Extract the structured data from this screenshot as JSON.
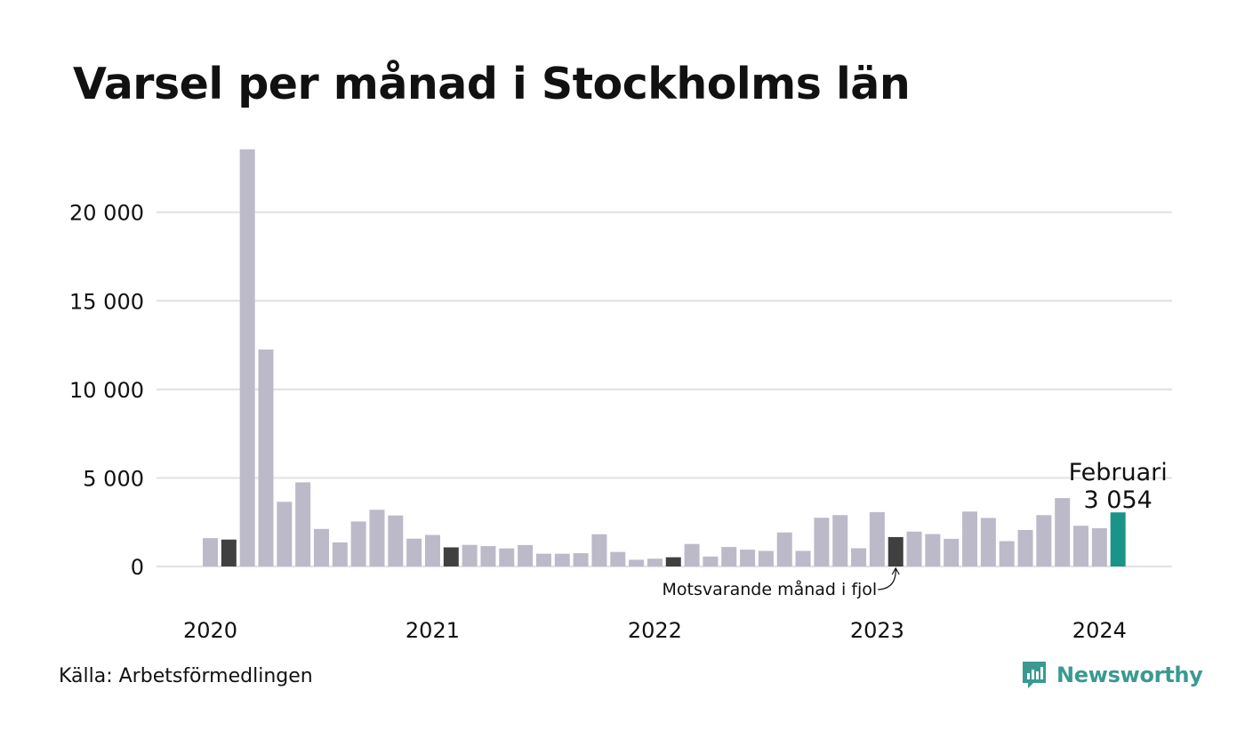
{
  "title": "Varsel per månad i Stockholms län",
  "source": "Källa: Arbetsförmedlingen",
  "brand": {
    "name": "Newsworthy",
    "icon": "newsworthy-logo-icon",
    "color": "#3a9a91"
  },
  "colors": {
    "default": "#bcbac8",
    "same_month_last_year": "#404040",
    "current": "#1a9488",
    "grid": "#e3e3e3"
  },
  "chart_data": {
    "type": "bar",
    "title": "Varsel per månad i Stockholms län",
    "x_tick_labels": [
      "2020",
      "2021",
      "2022",
      "2023",
      "2024"
    ],
    "y_ticks": [
      0,
      5000,
      10000,
      15000,
      20000
    ],
    "y_tick_labels": [
      "0",
      "5 000",
      "10 000",
      "15 000",
      "20 000"
    ],
    "ylim": [
      0,
      23600
    ],
    "grid": true,
    "categories": [
      "2020-01",
      "2020-02",
      "2020-03",
      "2020-04",
      "2020-05",
      "2020-06",
      "2020-07",
      "2020-08",
      "2020-09",
      "2020-10",
      "2020-11",
      "2020-12",
      "2021-01",
      "2021-02",
      "2021-03",
      "2021-04",
      "2021-05",
      "2021-06",
      "2021-07",
      "2021-08",
      "2021-09",
      "2021-10",
      "2021-11",
      "2021-12",
      "2022-01",
      "2022-02",
      "2022-03",
      "2022-04",
      "2022-05",
      "2022-06",
      "2022-07",
      "2022-08",
      "2022-09",
      "2022-10",
      "2022-11",
      "2022-12",
      "2023-01",
      "2023-02",
      "2023-03",
      "2023-04",
      "2023-05",
      "2023-06",
      "2023-07",
      "2023-08",
      "2023-09",
      "2023-10",
      "2023-11",
      "2023-12",
      "2024-01",
      "2024-02"
    ],
    "values": [
      1600,
      1520,
      23550,
      12250,
      3650,
      4750,
      2120,
      1360,
      2540,
      3200,
      2880,
      1570,
      1780,
      1080,
      1220,
      1150,
      1020,
      1210,
      720,
      720,
      750,
      1820,
      820,
      380,
      440,
      520,
      1270,
      560,
      1100,
      950,
      880,
      1920,
      880,
      2750,
      2900,
      1030,
      3070,
      1660,
      1970,
      1830,
      1560,
      3100,
      2740,
      1430,
      2060,
      2900,
      3860,
      2300,
      2160,
      3054
    ],
    "highlight": {
      "same_month_last_year": [
        "2020-02",
        "2021-02",
        "2022-02",
        "2023-02"
      ],
      "current": "2024-02"
    },
    "annotations": {
      "current_label": "Februari",
      "current_value_label": "3 054",
      "last_year_note": "Motsvarande månad i fjol"
    }
  }
}
